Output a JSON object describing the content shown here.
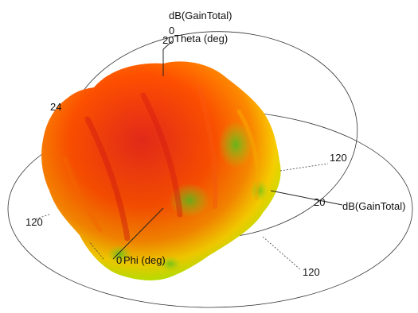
{
  "chart_data": {
    "type": "3d-radiation-pattern",
    "quantity": "dB(GainTotal)",
    "axes": {
      "theta": {
        "label": "Theta (deg)",
        "zero_tick": "0",
        "tick": "20"
      },
      "phi": {
        "label": "Phi (deg)",
        "zero_tick": "0",
        "tick": "120"
      },
      "radial": {
        "label": "dB(GainTotal)",
        "tick": "20"
      }
    },
    "tick_labels": [
      "20",
      "120",
      "120",
      "120",
      "20",
      "24"
    ],
    "colormap": [
      "#34c020",
      "#bff000",
      "#ffd500",
      "#ff8a00",
      "#ff5000",
      "#e82a1a"
    ],
    "grid": true,
    "legend": "none"
  }
}
